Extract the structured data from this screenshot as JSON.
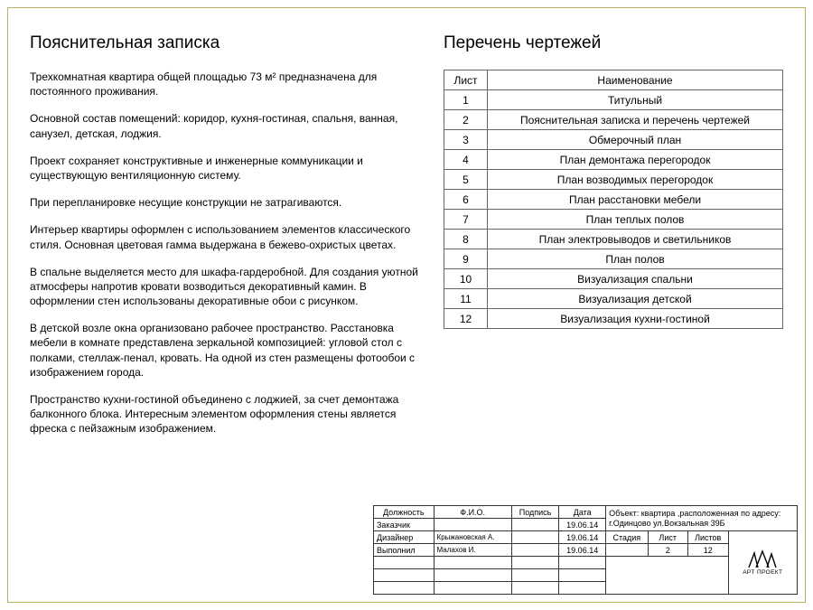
{
  "note": {
    "title": "Пояснительная записка",
    "paragraphs": [
      "Трехкомнатная квартира общей площадью 73 м² предназначена для постоянного проживания.",
      "Основной состав помещений: коридор, кухня-гостиная, спальня, ванная, санузел, детская, лоджия.",
      "Проект сохраняет конструктивные и инженерные коммуникации и существующую вентиляционную систему.",
      "При перепланировке несущие конструкции не затрагиваются.",
      "Интерьер квартиры оформлен с использованием элементов классического стиля. Основная цветовая гамма выдержана в бежево-охристых цветах.",
      "В спальне выделяется место для шкафа-гардеробной. Для создания уютной атмосферы напротив кровати возводиться декоративный камин. В оформлении стен использованы декоративные обои с рисунком.",
      "В детской возле окна организовано рабочее пространство. Расстановка мебели в комнате представлена зеркальной композицией: угловой стол с полками, стеллаж-пенал, кровать. На одной из стен размещены фотообои с изображением города.",
      "Пространство кухни-гостиной объединено с лоджией, за счет демонтажа балконного блока. Интересным элементом оформления стены является фреска с пейзажным изображением."
    ]
  },
  "drawings": {
    "title": "Перечень чертежей",
    "columns": [
      "Лист",
      "Наименование"
    ],
    "rows": [
      [
        "1",
        "Титульный"
      ],
      [
        "2",
        "Пояснительная записка и перечень чертежей"
      ],
      [
        "3",
        "Обмерочный план"
      ],
      [
        "4",
        "План демонтажа перегородок"
      ],
      [
        "5",
        "План возводимых перегородок"
      ],
      [
        "6",
        "План расстановки мебели"
      ],
      [
        "7",
        "План теплых полов"
      ],
      [
        "8",
        "План электровыводов и светильников"
      ],
      [
        "9",
        "План полов"
      ],
      [
        "10",
        "Визуализация спальни"
      ],
      [
        "11",
        "Визуализация детской"
      ],
      [
        "12",
        "Визуализация кухни-гостиной"
      ]
    ]
  },
  "titleblock": {
    "headers": {
      "role": "Должность",
      "name": "Ф.И.О.",
      "sign": "Подпись",
      "date": "Дата"
    },
    "object_label": "Объект: квартира ,расположенная по адресу: г.Одинцово ул.Вокзальная 39Б",
    "roles": [
      {
        "role": "Заказчик",
        "name": "",
        "date": "19.06.14"
      },
      {
        "role": "Дизайнер",
        "name": "Крыжановская А.",
        "date": "19.06.14"
      },
      {
        "role": "Выполнил",
        "name": "Малахов И.",
        "date": "19.06.14"
      }
    ],
    "stage_label": "Стадия",
    "sheet_label": "Лист",
    "sheets_label": "Листов",
    "stage": "",
    "sheet": "2",
    "sheets": "12",
    "logo_text": "АРТ ПРОЕКТ"
  },
  "style": {
    "frame_border_color": "#b8b25e",
    "table_border_color": "#666666",
    "text_color": "#000000",
    "background_color": "#ffffff"
  }
}
